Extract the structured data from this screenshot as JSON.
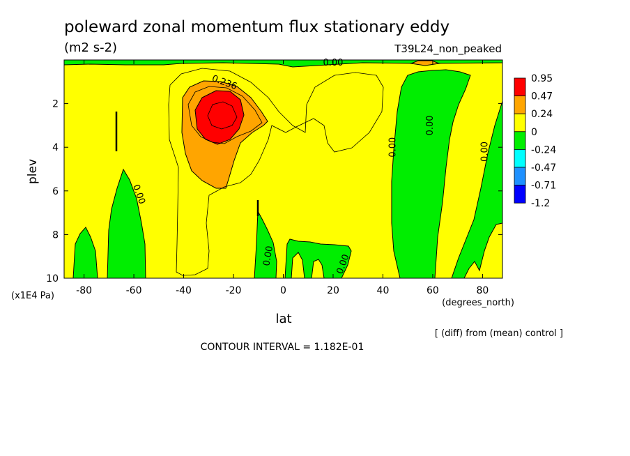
{
  "chart_data": {
    "type": "heatmap",
    "title": "poleward zonal momentum flux stationary eddy",
    "units": "(m2 s-2)",
    "run_label": "T39L24_non_peaked",
    "xlabel": "lat",
    "x_unit_label": "(degrees_north)",
    "ylabel": "plev",
    "y_unit_label": "(x1E4 Pa)",
    "xlim": [
      -88,
      88
    ],
    "ylim": [
      10,
      0
    ],
    "x_ticks": [
      "-80",
      "-60",
      "-40",
      "-20",
      "0",
      "20",
      "40",
      "60",
      "80"
    ],
    "x_tick_values": [
      -80,
      -60,
      -40,
      -20,
      0,
      20,
      40,
      60,
      80
    ],
    "y_ticks": [
      "2",
      "4",
      "6",
      "8",
      "10"
    ],
    "y_tick_values": [
      2,
      4,
      6,
      8,
      10
    ],
    "footnote": "[ (diff) from (mean) control ]",
    "contour_interval": "CONTOUR INTERVAL = 1.182E-01",
    "colorbar": {
      "labels": [
        "0.95",
        "0.47",
        "0.24",
        "0",
        "-0.24",
        "-0.47",
        "-0.71",
        "-1.2"
      ],
      "colors": [
        "#ff0000",
        "#ffa500",
        "#ffff00",
        "#00ee00",
        "#00ffff",
        "#1e90ff",
        "#0000ff"
      ]
    },
    "contour_labels": [
      "0.236",
      "0.00",
      "0.00",
      "0.00",
      "0.00",
      "0.00",
      "0.00",
      "0.00"
    ],
    "fields": {
      "background": "#ffff00",
      "regions": [
        {
          "level": "0.47 to 0.95",
          "color": "#ff0000",
          "center": [
            -25,
            2.8
          ]
        },
        {
          "level": "0.24 to 0.47",
          "color": "#ffa500",
          "center": [
            -30,
            3.5
          ]
        },
        {
          "level": "0 to -0.24",
          "color": "#00ee00",
          "center": [
            -80,
            8.8
          ]
        },
        {
          "level": "0 to -0.24",
          "color": "#00ee00",
          "center": [
            -63,
            7.5
          ]
        },
        {
          "level": "0 to -0.24",
          "color": "#00ee00",
          "center": [
            -7,
            8.6
          ]
        },
        {
          "level": "0 to -0.24",
          "color": "#00ee00",
          "center": [
            15,
            9.2
          ]
        },
        {
          "level": "0 to -0.24",
          "color": "#00ee00",
          "center": [
            55,
            6
          ]
        },
        {
          "level": "0 to -0.24",
          "color": "#00ee00",
          "center": [
            80,
            7
          ]
        }
      ]
    }
  }
}
